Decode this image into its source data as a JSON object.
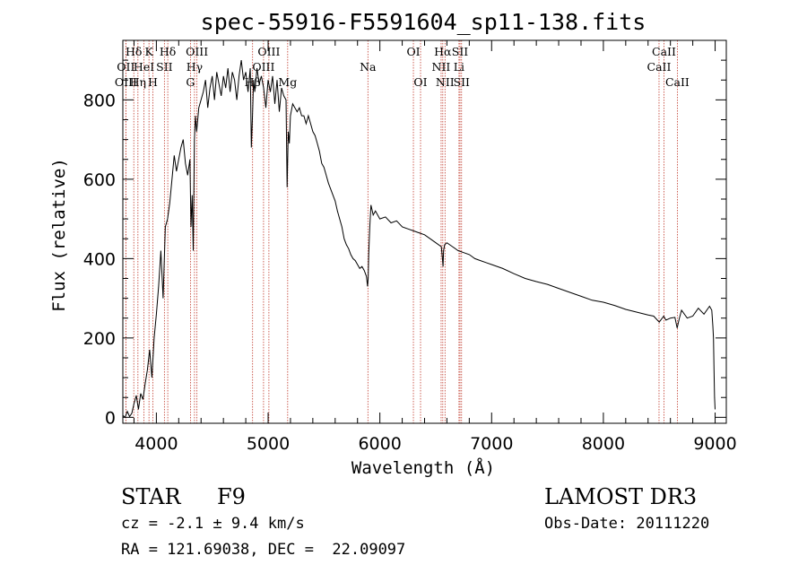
{
  "chart_data": {
    "type": "line",
    "title": "spec-55916-F5591604_sp11-138.fits",
    "xlabel": "Wavelength (Å)",
    "ylabel": "Flux (relative)",
    "xlim": [
      3700,
      9100
    ],
    "ylim": [
      -15,
      950
    ],
    "x_ticks": [
      4000,
      5000,
      6000,
      7000,
      8000,
      9000
    ],
    "y_ticks": [
      0,
      200,
      400,
      600,
      800
    ],
    "grid": false,
    "series": [
      {
        "name": "spectrum",
        "x": [
          3700,
          3720,
          3740,
          3760,
          3780,
          3800,
          3820,
          3840,
          3860,
          3880,
          3900,
          3920,
          3940,
          3960,
          3980,
          4000,
          4020,
          4040,
          4060,
          4080,
          4100,
          4120,
          4140,
          4160,
          4180,
          4200,
          4220,
          4240,
          4260,
          4280,
          4300,
          4310,
          4320,
          4330,
          4340,
          4350,
          4360,
          4380,
          4400,
          4420,
          4440,
          4460,
          4480,
          4500,
          4520,
          4540,
          4560,
          4580,
          4600,
          4620,
          4640,
          4660,
          4680,
          4700,
          4720,
          4740,
          4760,
          4780,
          4800,
          4820,
          4840,
          4850,
          4860,
          4870,
          4880,
          4900,
          4920,
          4940,
          4960,
          4980,
          5000,
          5020,
          5040,
          5060,
          5080,
          5100,
          5120,
          5140,
          5160,
          5170,
          5180,
          5190,
          5200,
          5220,
          5240,
          5260,
          5280,
          5300,
          5320,
          5340,
          5360,
          5380,
          5400,
          5420,
          5440,
          5460,
          5480,
          5500,
          5520,
          5540,
          5560,
          5580,
          5600,
          5620,
          5640,
          5660,
          5680,
          5700,
          5720,
          5740,
          5760,
          5780,
          5800,
          5820,
          5840,
          5860,
          5880,
          5890,
          5895,
          5900,
          5910,
          5920,
          5940,
          5960,
          5980,
          6000,
          6050,
          6100,
          6150,
          6200,
          6250,
          6300,
          6350,
          6400,
          6450,
          6500,
          6550,
          6560,
          6565,
          6570,
          6580,
          6600,
          6650,
          6700,
          6750,
          6800,
          6850,
          6900,
          6950,
          7000,
          7100,
          7200,
          7300,
          7400,
          7500,
          7600,
          7700,
          7800,
          7900,
          8000,
          8100,
          8200,
          8300,
          8400,
          8450,
          8500,
          8540,
          8560,
          8600,
          8640,
          8660,
          8680,
          8700,
          8750,
          8800,
          8850,
          8900,
          8950,
          8970,
          8980,
          8985,
          8990,
          8995,
          9000
        ],
        "y": [
          5,
          0,
          15,
          2,
          10,
          35,
          55,
          20,
          60,
          45,
          85,
          120,
          170,
          100,
          200,
          260,
          330,
          420,
          300,
          480,
          500,
          540,
          600,
          660,
          620,
          650,
          680,
          700,
          640,
          610,
          650,
          480,
          560,
          420,
          700,
          760,
          720,
          780,
          800,
          820,
          850,
          780,
          830,
          860,
          800,
          870,
          840,
          810,
          860,
          830,
          880,
          820,
          870,
          850,
          800,
          860,
          900,
          850,
          870,
          820,
          880,
          680,
          760,
          850,
          820,
          880,
          840,
          860,
          830,
          780,
          850,
          820,
          860,
          790,
          850,
          770,
          830,
          810,
          800,
          580,
          720,
          690,
          760,
          790,
          780,
          770,
          780,
          760,
          760,
          740,
          760,
          740,
          720,
          710,
          690,
          670,
          640,
          630,
          610,
          590,
          575,
          560,
          545,
          520,
          500,
          480,
          450,
          435,
          425,
          410,
          400,
          395,
          385,
          375,
          380,
          370,
          355,
          330,
          350,
          410,
          480,
          535,
          510,
          520,
          510,
          500,
          505,
          490,
          495,
          480,
          475,
          470,
          465,
          460,
          450,
          440,
          430,
          400,
          380,
          420,
          435,
          440,
          430,
          420,
          415,
          410,
          400,
          395,
          390,
          385,
          375,
          362,
          350,
          342,
          335,
          325,
          315,
          305,
          295,
          290,
          282,
          272,
          265,
          258,
          255,
          240,
          255,
          245,
          250,
          252,
          225,
          250,
          270,
          250,
          255,
          275,
          260,
          280,
          270,
          230,
          200,
          120,
          50,
          20
        ]
      }
    ],
    "spectral_lines": [
      {
        "label": "Hδ",
        "wavelength": 3798,
        "row": 1
      },
      {
        "label": "OII",
        "wavelength": 3727,
        "row": 2
      },
      {
        "label": "OIII",
        "wavelength": 3727,
        "row": 3
      },
      {
        "label": "K",
        "wavelength": 3934,
        "row": 1
      },
      {
        "label": "HeI",
        "wavelength": 3889,
        "row": 2
      },
      {
        "label": "Hη",
        "wavelength": 3835,
        "row": 3
      },
      {
        "label": "Hδ",
        "wavelength": 4102,
        "row": 1
      },
      {
        "label": "SII",
        "wavelength": 4072,
        "row": 2
      },
      {
        "label": "H",
        "wavelength": 3968,
        "row": 3
      },
      {
        "label": "OIII",
        "wavelength": 4363,
        "row": 1
      },
      {
        "label": "Hγ",
        "wavelength": 4341,
        "row": 2
      },
      {
        "label": "G",
        "wavelength": 4305,
        "row": 3
      },
      {
        "label": "OIII",
        "wavelength": 5007,
        "row": 1
      },
      {
        "label": "OIII",
        "wavelength": 4959,
        "row": 2
      },
      {
        "label": "Hβ",
        "wavelength": 4861,
        "row": 3
      },
      {
        "label": "Mg",
        "wavelength": 5175,
        "row": 3
      },
      {
        "label": "Na",
        "wavelength": 5893,
        "row": 2
      },
      {
        "label": "OI",
        "wavelength": 6300,
        "row": 1
      },
      {
        "label": "OI",
        "wavelength": 6364,
        "row": 3
      },
      {
        "label": "Hα",
        "wavelength": 6563,
        "row": 1
      },
      {
        "label": "NII",
        "wavelength": 6548,
        "row": 2
      },
      {
        "label": "NII",
        "wavelength": 6583,
        "row": 3
      },
      {
        "label": "SII",
        "wavelength": 6717,
        "row": 1
      },
      {
        "label": "Li",
        "wavelength": 6708,
        "row": 2
      },
      {
        "label": "SII",
        "wavelength": 6731,
        "row": 3
      },
      {
        "label": "CaII",
        "wavelength": 8542,
        "row": 1
      },
      {
        "label": "CaII",
        "wavelength": 8498,
        "row": 2
      },
      {
        "label": "CaII",
        "wavelength": 8662,
        "row": 3
      }
    ]
  },
  "info": {
    "class": "STAR",
    "subclass": "F9",
    "cz": "cz = -2.1 ± 9.4 km/s",
    "coords": "RA = 121.69038, DEC =  22.09097",
    "survey": "LAMOST DR3",
    "obs_date": "Obs-Date: 20111220"
  }
}
